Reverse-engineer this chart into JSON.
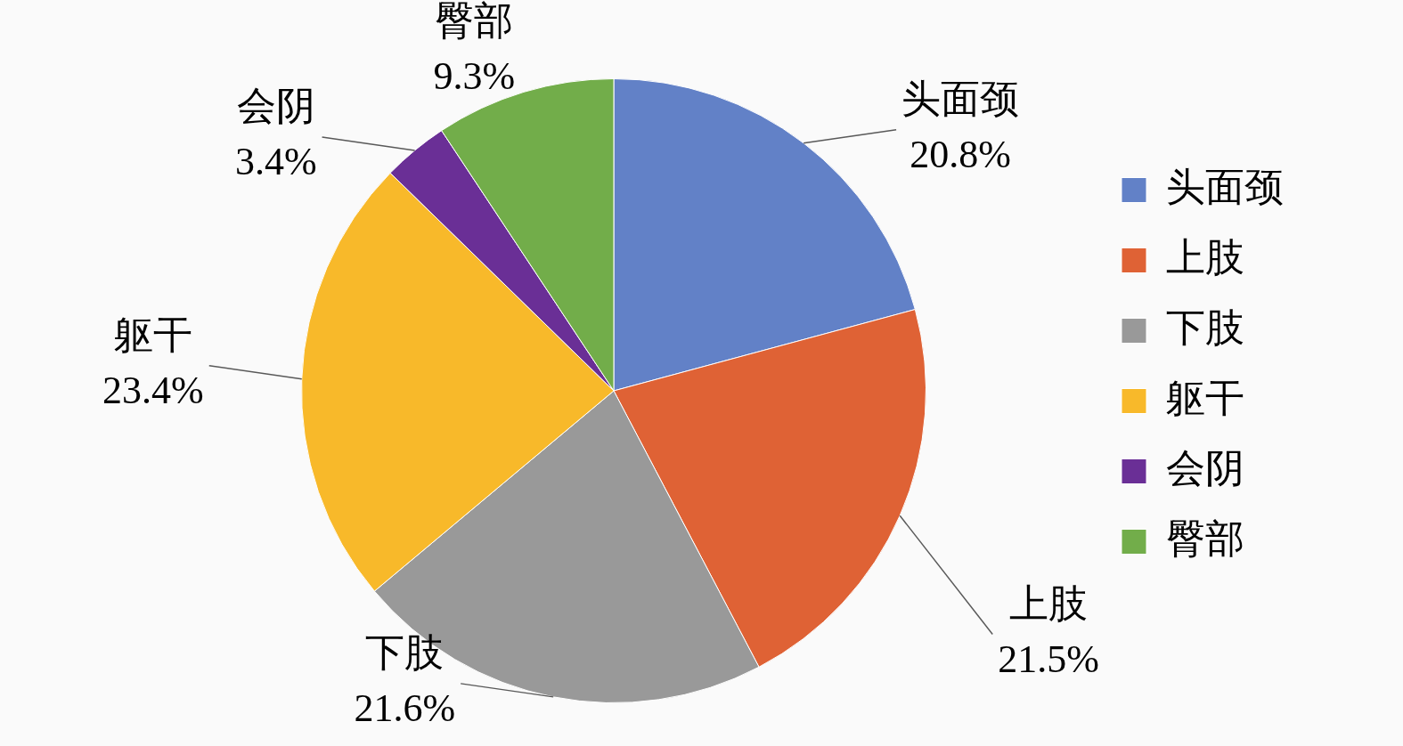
{
  "chart_data": {
    "type": "pie",
    "categories": [
      "头面颈",
      "上肢",
      "下肢",
      "躯干",
      "会阴",
      "臀部"
    ],
    "values": [
      20.8,
      21.5,
      21.6,
      23.4,
      3.4,
      9.3
    ],
    "value_labels": [
      "20.8%",
      "21.5%",
      "21.6%",
      "23.4%",
      "3.4%",
      "9.3%"
    ],
    "colors": [
      "#6281c7",
      "#df6235",
      "#999999",
      "#f8b92a",
      "#6a2f96",
      "#72ad4a"
    ],
    "legend": "right"
  }
}
